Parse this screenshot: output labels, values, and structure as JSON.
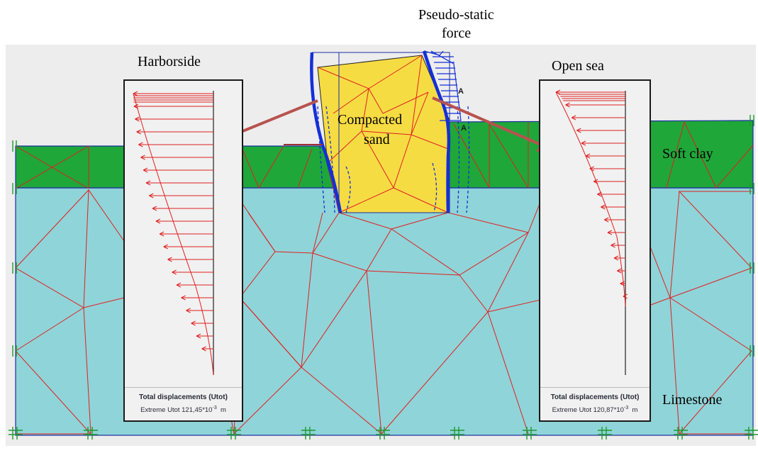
{
  "labels": {
    "pseudo_static_line1": "Pseudo-static",
    "pseudo_static_line2": "force",
    "harborside": "Harborside",
    "open_sea": "Open sea",
    "compacted_line1": "Compacted",
    "compacted_line2": "sand",
    "soft_clay": "Soft clay",
    "limestone": "Limestone",
    "anchor_a": "A"
  },
  "panels": {
    "left": {
      "title": "Total displacements (Utot)",
      "prefix": "Extreme Utot 121,45*10",
      "exponent": "-3",
      "unit": "m"
    },
    "right": {
      "title": "Total displacements (Utot)",
      "prefix": "Extreme Utot 120,87*10",
      "exponent": "-3",
      "unit": "m"
    }
  },
  "colors": {
    "limestone": "#8fd4d8",
    "soft_clay": "#1fa73a",
    "compacted_sand": "#f6dc43",
    "mesh": "#e02020",
    "wall": "#1430d8",
    "arrow": "#b8524f",
    "background": "#ededed"
  }
}
